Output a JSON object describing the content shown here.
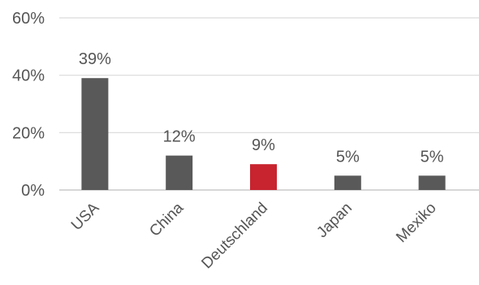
{
  "chart_data": {
    "type": "bar",
    "categories": [
      "USA",
      "China",
      "Deutschland",
      "Japan",
      "Mexiko"
    ],
    "values": [
      39,
      12,
      9,
      5,
      5
    ],
    "value_labels": [
      "39%",
      "12%",
      "9%",
      "5%",
      "5%"
    ],
    "ylim": [
      0,
      60
    ],
    "yticks": [
      0,
      20,
      40,
      60
    ],
    "ytick_labels": [
      "0%",
      "20%",
      "40%",
      "60%"
    ],
    "grid": true,
    "legend": "none",
    "title": "",
    "xlabel": "",
    "ylabel": "",
    "colors": {
      "default": "#595959",
      "highlight": "#c8242f",
      "highlight_category": "Deutschland"
    }
  }
}
